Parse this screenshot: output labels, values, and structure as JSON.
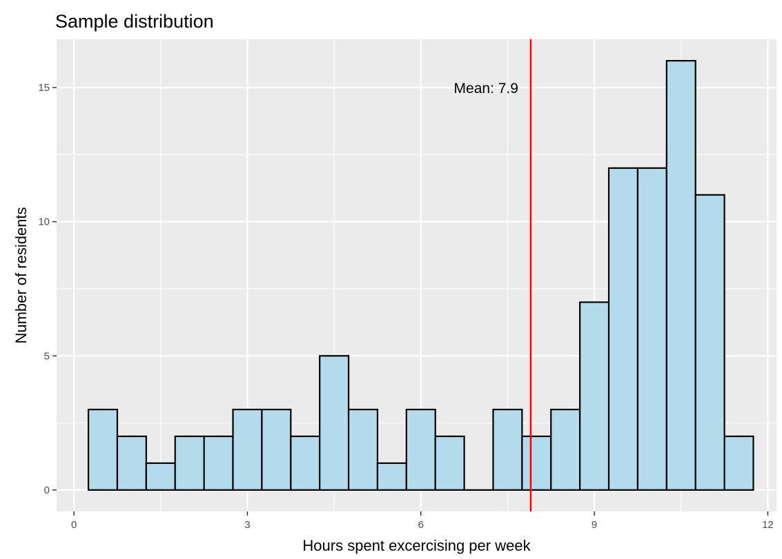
{
  "chart_data": {
    "type": "bar",
    "title": "Sample distribution",
    "xlabel": "Hours spent excercising per week",
    "ylabel": "Number of residents",
    "bin_width": 0.5,
    "bin_centers": [
      0.5,
      1.0,
      1.5,
      2.0,
      2.5,
      3.0,
      3.5,
      4.0,
      4.5,
      5.0,
      5.5,
      6.0,
      6.5,
      7.0,
      7.5,
      8.0,
      8.5,
      9.0,
      9.5,
      10.0,
      10.5,
      11.0,
      11.5
    ],
    "values": [
      3,
      2,
      1,
      2,
      2,
      3,
      3,
      2,
      5,
      3,
      1,
      3,
      2,
      0,
      3,
      2,
      3,
      7,
      12,
      12,
      16,
      11,
      2
    ],
    "xlim": [
      -0.3,
      12.15
    ],
    "ylim": [
      -0.8,
      16.8
    ],
    "x_ticks": [
      0,
      3,
      6,
      9,
      12
    ],
    "x_tick_labels": [
      "0",
      "3",
      "6",
      "9",
      "12"
    ],
    "y_ticks": [
      0,
      5,
      10,
      15
    ],
    "y_tick_labels": [
      "0",
      "5",
      "10",
      "15"
    ],
    "mean_line": {
      "x": 7.9,
      "label": "Mean: 7.9",
      "label_y": 15,
      "color": "#ff0000"
    },
    "colors": {
      "bar_fill": "#b3dbec",
      "bar_stroke": "#000000",
      "panel_bg": "#ebebeb",
      "grid": "#ffffff"
    },
    "grid": true,
    "legend": "none"
  }
}
